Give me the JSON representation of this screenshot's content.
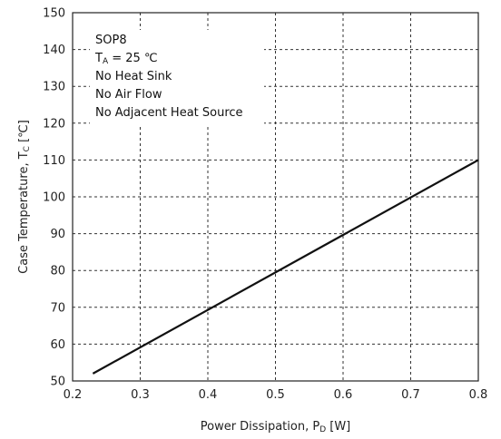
{
  "chart_data": {
    "type": "line",
    "xlabel_main": "Power Dissipation, P",
    "xlabel_sub": "D",
    "xlabel_unit": " [W]",
    "ylabel_main": "Case Temperature, T",
    "ylabel_sub": "C",
    "ylabel_unit": " [℃]",
    "xlim": [
      0.2,
      0.8
    ],
    "ylim": [
      50,
      150
    ],
    "x_ticks": [
      "0.2",
      "0.3",
      "0.4",
      "0.5",
      "0.6",
      "0.7",
      "0.8"
    ],
    "y_ticks": [
      "50",
      "60",
      "70",
      "80",
      "90",
      "100",
      "110",
      "120",
      "130",
      "140",
      "150"
    ],
    "grid": true,
    "series": [
      {
        "x": [
          0.23,
          0.8
        ],
        "y": [
          52,
          110
        ],
        "color": "#111111"
      }
    ],
    "annotation": {
      "line1": "SOP8",
      "line2_main": "T",
      "line2_sub": "A",
      "line2_rest": " = 25 ℃",
      "line3": "No Heat Sink",
      "line4": "No Air Flow",
      "line5": "No Adjacent Heat Source"
    }
  }
}
